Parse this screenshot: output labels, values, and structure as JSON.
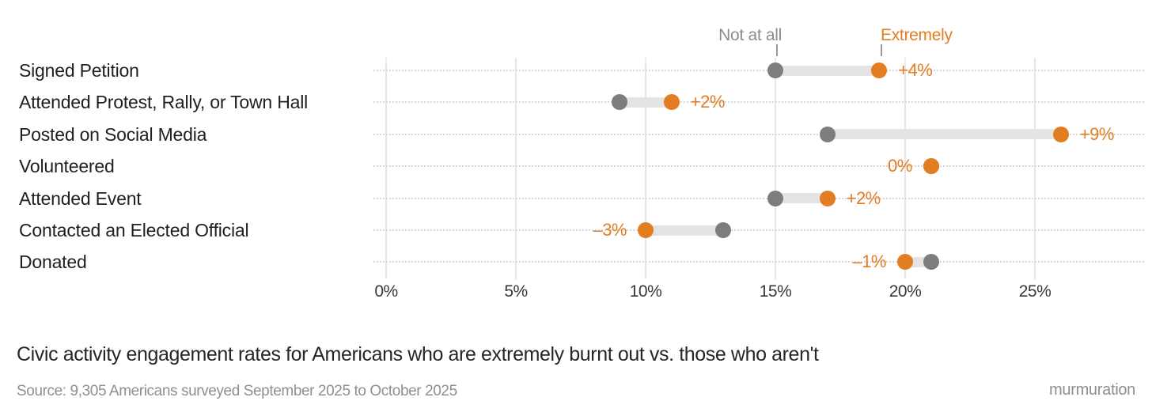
{
  "colors": {
    "extremely_orange": "#e27d21",
    "not_at_all_gray": "#7d7d7d",
    "legend_gray_text": "#8c8c8c",
    "legend_tick_gray": "#9a9a9a",
    "connector_gray": "#e4e4e4",
    "gridline_gray": "#e7e7e7",
    "row_dotted_gray": "#d8d8d8",
    "dark_text": "#1f1f1f",
    "muted_text": "#8f8f8f"
  },
  "legend": {
    "not_at_all_label": "Not at all",
    "extremely_label": "Extremely"
  },
  "chart_data": {
    "type": "dumbbell",
    "categories": [
      "Signed Petition",
      "Attended Protest, Rally, or Town Hall",
      "Posted on Social Media",
      "Volunteered",
      "Attended Event",
      "Contacted an Elected Official",
      "Donated"
    ],
    "series": [
      {
        "name": "Not at all",
        "values": [
          15,
          9,
          17,
          21,
          15,
          13,
          21
        ]
      },
      {
        "name": "Extremely",
        "values": [
          19,
          11,
          26,
          21,
          17,
          10,
          20
        ]
      }
    ],
    "diff_labels": [
      "+4%",
      "+2%",
      "+9%",
      "0%",
      "+2%",
      "–3%",
      "–1%"
    ],
    "x_ticks": [
      "0%",
      "5%",
      "10%",
      "15%",
      "20%",
      "25%"
    ],
    "x_tick_values": [
      0,
      5,
      10,
      15,
      20,
      25
    ],
    "xlim": [
      0,
      29
    ],
    "grid": "vertical-on",
    "legend_position": "top-right-above-first-row",
    "title": "Civic activity engagement rates for Americans who are extremely burnt out vs. those who aren't",
    "source": "Source: 9,305 Americans surveyed September 2025 to October 2025",
    "brand": "murmuration"
  }
}
